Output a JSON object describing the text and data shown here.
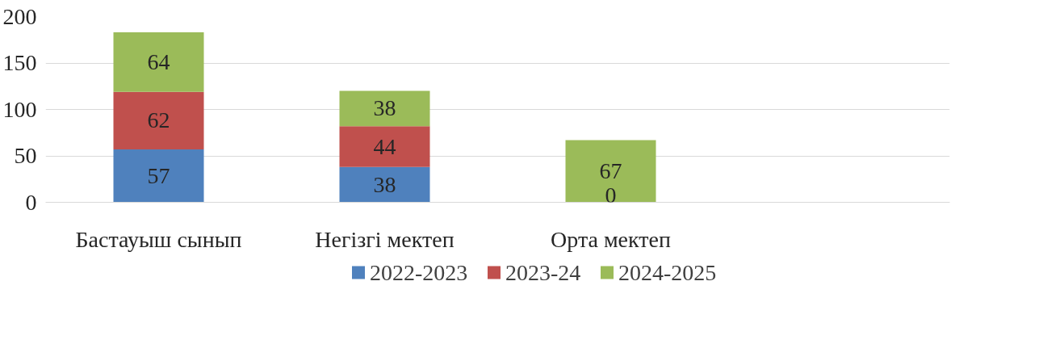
{
  "chart_data": {
    "type": "bar",
    "stacked": true,
    "categories": [
      "Бастауыш сынып",
      "Негізгі мектеп",
      "Орта мектеп",
      null
    ],
    "series": [
      {
        "name": "2022-2023",
        "color": "#4f81bd",
        "values": [
          57,
          38,
          null,
          null
        ]
      },
      {
        "name": "2023-24",
        "color": "#c0504d",
        "values": [
          62,
          44,
          0,
          null
        ]
      },
      {
        "name": "2024-2025",
        "color": "#9bbb59",
        "values": [
          64,
          38,
          67,
          null
        ]
      }
    ],
    "ylim": [
      0,
      200
    ],
    "yticks": [
      0,
      50,
      100,
      150,
      200
    ],
    "grid": "y",
    "legend": "bottom",
    "data_labels": true
  }
}
